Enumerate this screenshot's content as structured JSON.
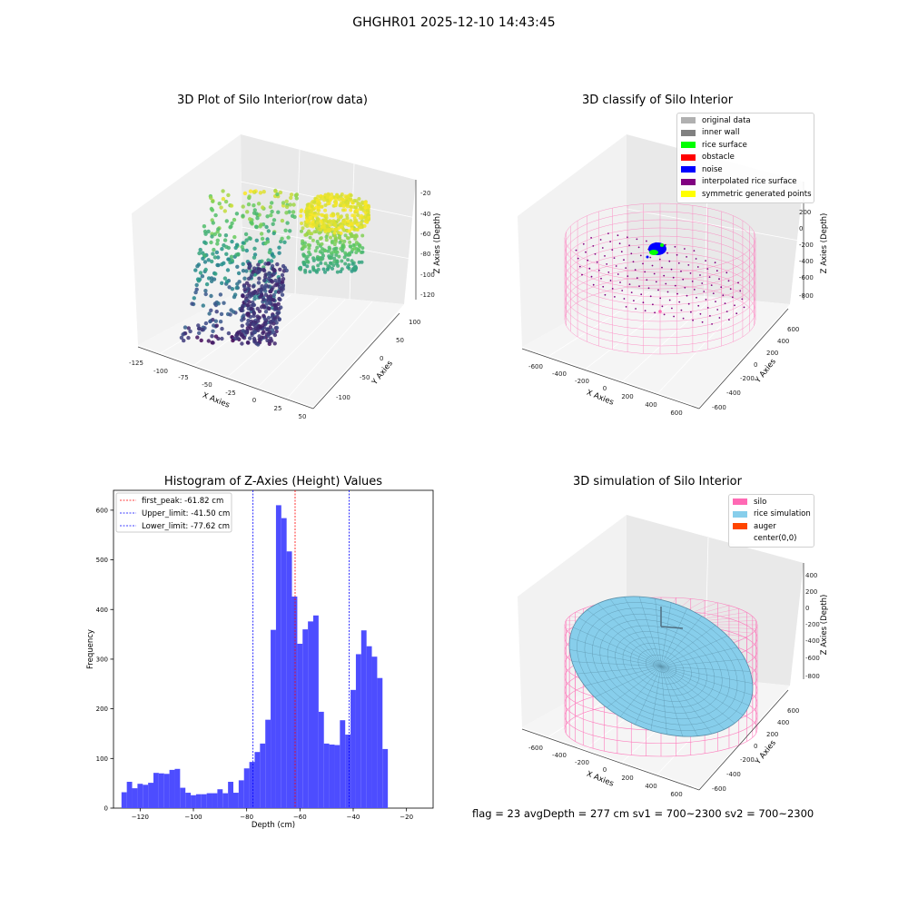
{
  "figure": {
    "suptitle": "GHGHR01 2025-12-10 14:43:45",
    "bottom_text": "flag = 23   avgDepth = 277 cm  sv1 = 700~2300  sv2 = 700~2300"
  },
  "panels": {
    "raw": {
      "title": "3D Plot of Silo Interior(row data)",
      "xlabel": "X Axies",
      "ylabel": "Y Axies",
      "zlabel": "Z Axies (Depth)",
      "xticks": [
        "-125",
        "-100",
        "-75",
        "-50",
        "-25",
        "0",
        "25",
        "50"
      ],
      "yticks": [
        "-100",
        "-50",
        "0",
        "50",
        "100"
      ],
      "zticks": [
        "-20",
        "-40",
        "-60",
        "-80",
        "-100",
        "-120"
      ],
      "colormap": "viridis"
    },
    "classify": {
      "title": "3D classify of Silo Interior",
      "xlabel": "X Axies",
      "ylabel": "Y Axies",
      "zlabel": "Z Axies (Depth)",
      "xticks": [
        "-600",
        "-400",
        "-200",
        "0",
        "200",
        "400",
        "600"
      ],
      "yticks": [
        "-600",
        "-400",
        "-200",
        "0",
        "200",
        "400",
        "600"
      ],
      "zticks": [
        "200",
        "0",
        "-200",
        "-400",
        "-600",
        "-800"
      ],
      "legend": [
        {
          "label": "original data",
          "color": "#b0b0b0"
        },
        {
          "label": "inner wall",
          "color": "#808080"
        },
        {
          "label": "rice surface",
          "color": "#00ff00"
        },
        {
          "label": "obstacle",
          "color": "#ff0000"
        },
        {
          "label": "noise",
          "color": "#0000ff"
        },
        {
          "label": "interpolated rice surface",
          "color": "#800080"
        },
        {
          "label": "symmetric generated points",
          "color": "#ffff00"
        }
      ]
    },
    "simulation": {
      "title": "3D simulation of Silo Interior",
      "xlabel": "X Axies",
      "ylabel": "Y Axies",
      "zlabel": "Z Axies (Depth)",
      "xticks": [
        "-600",
        "-400",
        "-200",
        "0",
        "200",
        "400",
        "600"
      ],
      "yticks": [
        "-600",
        "-400",
        "-200",
        "0",
        "200",
        "400",
        "600"
      ],
      "zticks": [
        "400",
        "200",
        "0",
        "-200",
        "-400",
        "-600",
        "-800"
      ],
      "legend": [
        {
          "label": "silo",
          "color": "#ff69b4"
        },
        {
          "label": "rice simulation",
          "color": "#87ceeb"
        },
        {
          "label": "auger",
          "color": "#ff4500"
        },
        {
          "label": "center(0,0)",
          "color": "#ffffff"
        }
      ]
    }
  },
  "chart_data": {
    "type": "bar",
    "title": "Histogram of Z-Axies (Height) Values",
    "xlabel": "Depth (cm)",
    "ylabel": "Frequency",
    "xlim": [
      -130,
      -10
    ],
    "ylim": [
      0,
      640
    ],
    "xticks": [
      -120,
      -100,
      -80,
      -60,
      -40,
      -20
    ],
    "yticks": [
      0,
      100,
      200,
      300,
      400,
      500,
      600
    ],
    "bin_start": -127,
    "bin_width": 2,
    "color": "#4d4dff",
    "values": [
      32,
      53,
      40,
      49,
      47,
      51,
      71,
      70,
      69,
      77,
      79,
      41,
      31,
      26,
      28,
      28,
      30,
      30,
      38,
      30,
      53,
      31,
      56,
      80,
      93,
      113,
      130,
      178,
      359,
      610,
      584,
      517,
      426,
      331,
      360,
      376,
      388,
      194,
      130,
      128,
      127,
      177,
      148,
      238,
      310,
      358,
      326,
      305,
      262,
      119
    ],
    "vlines": [
      {
        "x": -61.82,
        "color": "#ff0000",
        "label": "first_peak: -61.82 cm"
      },
      {
        "x": -41.5,
        "color": "#0000ff",
        "label": "Upper_limit: -41.50 cm"
      },
      {
        "x": -77.62,
        "color": "#0000ff",
        "label": "Lower_limit: -77.62 cm"
      }
    ]
  }
}
